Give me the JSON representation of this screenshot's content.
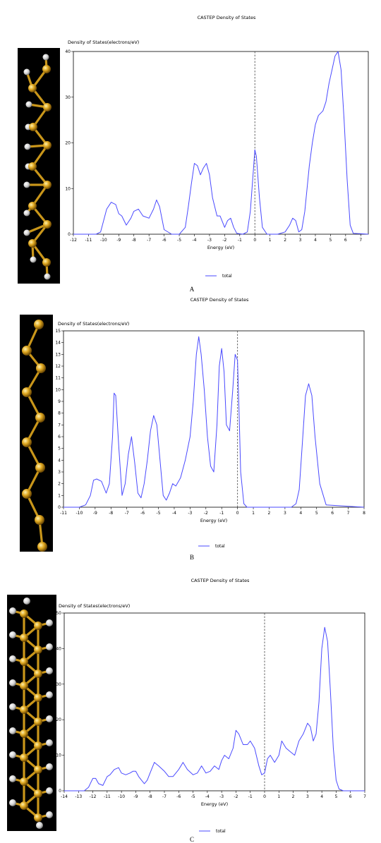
{
  "colors": {
    "line": "#4a4aff",
    "fermi": "#555555",
    "gold": "#d9a21b",
    "hydrogen": "#d8d8d8",
    "panel_bg": "#000000"
  },
  "panels": [
    {
      "label": "A",
      "structure_icon": "zigzag-chain-with-h-icon"
    },
    {
      "label": "B",
      "structure_icon": "zigzag-chain-icon"
    },
    {
      "label": "C",
      "structure_icon": "ladder-chain-with-h-icon"
    }
  ],
  "chart_data": [
    {
      "type": "line",
      "title": "CASTEP Density of States",
      "xlabel": "Energy (eV)",
      "ylabel": "Density of States(electrons/eV)",
      "xlim": [
        -12,
        7.5
      ],
      "ylim": [
        0,
        40
      ],
      "xticks": [
        -12,
        -11,
        -10,
        -9,
        -8,
        -7,
        -6,
        -5,
        -4,
        -3,
        -2,
        -1,
        0,
        1,
        2,
        3,
        4,
        5,
        6,
        7
      ],
      "yticks": [
        0,
        10,
        20,
        30,
        40
      ],
      "fermi_level": 0,
      "grid": false,
      "legend": "bottom-center",
      "series": [
        {
          "name": "total",
          "x": [
            -12,
            -10.5,
            -10.2,
            -10,
            -9.8,
            -9.5,
            -9.2,
            -9,
            -8.8,
            -8.5,
            -8.2,
            -8,
            -7.7,
            -7.4,
            -7,
            -6.7,
            -6.5,
            -6.3,
            -6,
            -5.5,
            -5,
            -4.6,
            -4.4,
            -4.2,
            -4,
            -3.8,
            -3.6,
            -3.4,
            -3.2,
            -3,
            -2.8,
            -2.5,
            -2.3,
            -2,
            -1.8,
            -1.6,
            -1.4,
            -1.2,
            -0.8,
            -0.5,
            -0.3,
            -0.1,
            0,
            0.1,
            0.3,
            0.5,
            0.8,
            1,
            1.5,
            2,
            2.3,
            2.5,
            2.7,
            2.9,
            3.1,
            3.3,
            3.6,
            3.8,
            4,
            4.2,
            4.5,
            4.7,
            4.9,
            5.1,
            5.3,
            5.5,
            5.7,
            5.9,
            6.1,
            6.3,
            6.5,
            7.5
          ],
          "y": [
            0,
            0,
            0.5,
            3,
            5.5,
            7,
            6.5,
            4.5,
            4,
            2,
            3.5,
            5,
            5.5,
            4,
            3.5,
            5.5,
            7.5,
            6,
            1,
            0,
            0,
            1.5,
            6,
            11,
            15.5,
            15,
            13,
            14.5,
            15.5,
            13,
            8,
            4,
            4,
            1.5,
            3,
            3.5,
            1.5,
            0.2,
            0,
            0.5,
            5,
            14,
            18.5,
            17,
            8,
            1.5,
            0,
            0,
            0,
            0.5,
            2,
            3.5,
            3,
            0.5,
            1,
            5,
            15,
            20,
            24,
            26,
            27,
            29,
            33,
            36,
            39,
            40,
            36,
            25,
            12,
            2,
            0.2,
            0
          ]
        }
      ]
    },
    {
      "type": "line",
      "title": "CASTEP Density of States",
      "xlabel": "Energy (eV)",
      "ylabel": "Density of States(electrons/eV)",
      "xlim": [
        -11,
        8
      ],
      "ylim": [
        0,
        15
      ],
      "xticks": [
        -11,
        -10,
        -9,
        -8,
        -7,
        -6,
        -5,
        -4,
        -3,
        -2,
        -1,
        0,
        1,
        2,
        3,
        4,
        5,
        6,
        7,
        8
      ],
      "yticks": [
        0,
        1,
        2,
        3,
        4,
        5,
        6,
        7,
        8,
        9,
        10,
        11,
        12,
        13,
        14,
        15
      ],
      "fermi_level": 0,
      "grid": false,
      "legend": "bottom-center",
      "series": [
        {
          "name": "total",
          "x": [
            -11,
            -10,
            -9.6,
            -9.3,
            -9.1,
            -8.9,
            -8.6,
            -8.3,
            -8.1,
            -7.9,
            -7.8,
            -7.7,
            -7.5,
            -7.3,
            -7.1,
            -6.9,
            -6.7,
            -6.5,
            -6.3,
            -6.1,
            -5.9,
            -5.7,
            -5.5,
            -5.3,
            -5.1,
            -4.9,
            -4.7,
            -4.5,
            -4.3,
            -4.1,
            -3.9,
            -3.6,
            -3.3,
            -3,
            -2.8,
            -2.6,
            -2.45,
            -2.3,
            -2.1,
            -1.9,
            -1.7,
            -1.5,
            -1.3,
            -1.15,
            -1,
            -0.85,
            -0.7,
            -0.5,
            -0.3,
            -0.15,
            0,
            0.1,
            0.2,
            0.4,
            0.6,
            1,
            2,
            3,
            3.4,
            3.7,
            3.9,
            4.1,
            4.3,
            4.5,
            4.7,
            4.9,
            5.2,
            5.6,
            8
          ],
          "y": [
            0,
            0,
            0.2,
            1,
            2.3,
            2.4,
            2.2,
            1.2,
            2,
            6,
            9.7,
            9.5,
            5,
            1,
            2,
            4.5,
            6,
            3.8,
            1.2,
            0.8,
            2,
            4,
            6.5,
            7.8,
            7,
            4,
            1,
            0.6,
            1.2,
            2,
            1.8,
            2.5,
            4,
            6,
            9,
            13,
            14.5,
            13,
            10,
            6,
            3.5,
            3,
            7,
            12,
            13.5,
            11.5,
            7,
            6.5,
            10,
            13,
            12.5,
            8,
            3,
            0.3,
            0,
            0,
            0,
            0,
            0,
            0.3,
            1.5,
            5.5,
            9.5,
            10.5,
            9.5,
            6,
            2,
            0.2,
            0
          ]
        }
      ]
    },
    {
      "type": "line",
      "title": "CASTEP Density of States",
      "xlabel": "Energy (eV)",
      "ylabel": "Density of States(electrons/eV)",
      "xlim": [
        -14,
        7
      ],
      "ylim": [
        0,
        50
      ],
      "xticks": [
        -14,
        -13,
        -12,
        -11,
        -10,
        -9,
        -8,
        -7,
        -6,
        -5,
        -4,
        -3,
        -2,
        -1,
        0,
        1,
        2,
        3,
        4,
        5,
        6,
        7
      ],
      "yticks": [
        0,
        10,
        20,
        30,
        40,
        50
      ],
      "fermi_level": 0,
      "grid": false,
      "legend": "bottom-center",
      "series": [
        {
          "name": "total",
          "x": [
            -14,
            -12.6,
            -12.3,
            -12,
            -11.8,
            -11.6,
            -11.3,
            -11,
            -10.8,
            -10.5,
            -10.2,
            -10,
            -9.7,
            -9.4,
            -9.2,
            -9,
            -8.8,
            -8.6,
            -8.4,
            -8.2,
            -8,
            -7.7,
            -7.4,
            -7,
            -6.7,
            -6.4,
            -6,
            -5.7,
            -5.4,
            -5,
            -4.7,
            -4.4,
            -4.1,
            -3.8,
            -3.5,
            -3.2,
            -3,
            -2.8,
            -2.5,
            -2.2,
            -2,
            -1.8,
            -1.5,
            -1.2,
            -1,
            -0.7,
            -0.4,
            -0.2,
            0,
            0.2,
            0.4,
            0.7,
            1,
            1.2,
            1.5,
            1.8,
            2.1,
            2.4,
            2.7,
            3,
            3.2,
            3.4,
            3.6,
            3.8,
            4,
            4.2,
            4.4,
            4.6,
            4.8,
            5,
            5.2,
            5.5,
            7
          ],
          "y": [
            0,
            0,
            1,
            3.5,
            3.5,
            2,
            1.5,
            4,
            4.5,
            6,
            6.5,
            5,
            4.5,
            5,
            5.5,
            5.5,
            4,
            3,
            2,
            3,
            5,
            8,
            7,
            5.5,
            4,
            4,
            6,
            8,
            6,
            4.5,
            5,
            7,
            5,
            5.5,
            7,
            6,
            8.5,
            10,
            9,
            12,
            17,
            16,
            13,
            13,
            14,
            12,
            7,
            4.5,
            5,
            9,
            10,
            8,
            10,
            14,
            12,
            11,
            10,
            14,
            16,
            19,
            18,
            14,
            16,
            25,
            40,
            46,
            42,
            28,
            12,
            3,
            0.5,
            0,
            0
          ]
        }
      ]
    }
  ]
}
